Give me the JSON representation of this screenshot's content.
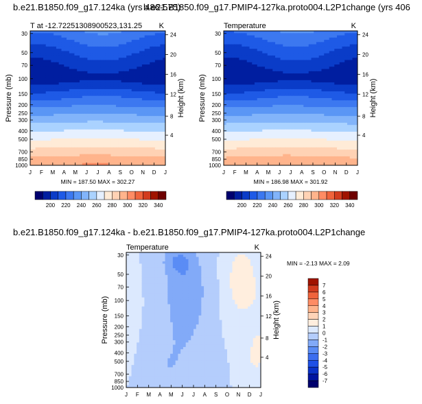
{
  "chart_data": [
    {
      "type": "heatmap",
      "title": "b.e21.B1850.f09_g17.124ka (yrs 486-575)",
      "left_string": "T at -12.72251308900523,131.25",
      "right_string": "K",
      "xlabel": "",
      "ylabel": "Pressure (mb)",
      "ylabel_right": "Height (km)",
      "x": [
        "J",
        "F",
        "M",
        "A",
        "M",
        "J",
        "J",
        "A",
        "S",
        "O",
        "N",
        "D",
        "J"
      ],
      "pressure_ticks": [
        "30",
        "50",
        "70",
        "100",
        "150",
        "200",
        "250",
        "300",
        "400",
        "500",
        "700",
        "850",
        "1000"
      ],
      "height_ticks": [
        "4",
        "8",
        "12",
        "16",
        "20",
        "24"
      ],
      "minmax": "MIN = 187.50   MAX = 302.27",
      "scale": "log-pressure",
      "colorbar": [
        "200",
        "220",
        "240",
        "260",
        "280",
        "300",
        "320",
        "340"
      ]
    },
    {
      "type": "heatmap",
      "title": "b.e21.B1850.f09_g17.PMIP4-127ka.proto004.L2P1change (yrs 406",
      "left_string": "Temperature",
      "right_string": "K",
      "xlabel": "",
      "ylabel": "Pressure (mb)",
      "ylabel_right": "Height (km)",
      "x": [
        "J",
        "F",
        "M",
        "A",
        "M",
        "J",
        "J",
        "A",
        "S",
        "O",
        "N",
        "D",
        "J"
      ],
      "pressure_ticks": [
        "30",
        "50",
        "70",
        "100",
        "150",
        "200",
        "250",
        "300",
        "400",
        "500",
        "700",
        "850",
        "1000"
      ],
      "height_ticks": [
        "4",
        "8",
        "12",
        "16",
        "20",
        "24"
      ],
      "minmax": "MIN = 186.98   MAX = 301.92",
      "scale": "log-pressure",
      "colorbar": [
        "200",
        "220",
        "240",
        "260",
        "280",
        "300",
        "320",
        "340"
      ]
    },
    {
      "type": "heatmap",
      "title": "b.e21.B1850.f09_g17.124ka - b.e21.B1850.f09_g17.PMIP4-127ka.proto004.L2P1change",
      "left_string": "Temperature",
      "right_string": "K",
      "xlabel": "",
      "ylabel": "Pressure (mb)",
      "ylabel_right": "Height (km)",
      "x": [
        "J",
        "F",
        "M",
        "A",
        "M",
        "J",
        "J",
        "A",
        "S",
        "O",
        "N",
        "D",
        "J"
      ],
      "pressure_ticks": [
        "30",
        "50",
        "70",
        "100",
        "150",
        "200",
        "250",
        "300",
        "400",
        "500",
        "700",
        "850",
        "1000"
      ],
      "height_ticks": [
        "4",
        "8",
        "12",
        "16",
        "20",
        "24"
      ],
      "minmax": "MIN = -2.13   MAX =  2.09",
      "scale": "log-pressure",
      "colorbar": [
        "7",
        "6",
        "5",
        "4",
        "3",
        "2",
        "1",
        "0",
        "-1",
        "-2",
        "-3",
        "-4",
        "-5",
        "-6",
        "-7"
      ]
    }
  ],
  "colors": {
    "temp_palette": [
      "#00006e",
      "#001ea0",
      "#0a3cc8",
      "#1e5ae6",
      "#3c78f0",
      "#5a96f5",
      "#82b4fa",
      "#aad2ff",
      "#e6f0ff",
      "#ffebd7",
      "#ffd2b4",
      "#ffb48c",
      "#ff8c64",
      "#f0643c",
      "#d23c1e",
      "#a01400",
      "#6e0000"
    ],
    "diff_palette": [
      "#00006e",
      "#0014a0",
      "#0a32c8",
      "#1e50e6",
      "#3c6eef",
      "#5a8cf5",
      "#82aaf8",
      "#b4cdfc",
      "#dce9fe",
      "#ffeede",
      "#ffd4b8",
      "#ffb48c",
      "#ff8c64",
      "#f0643c",
      "#d23c1e",
      "#a01400"
    ]
  }
}
